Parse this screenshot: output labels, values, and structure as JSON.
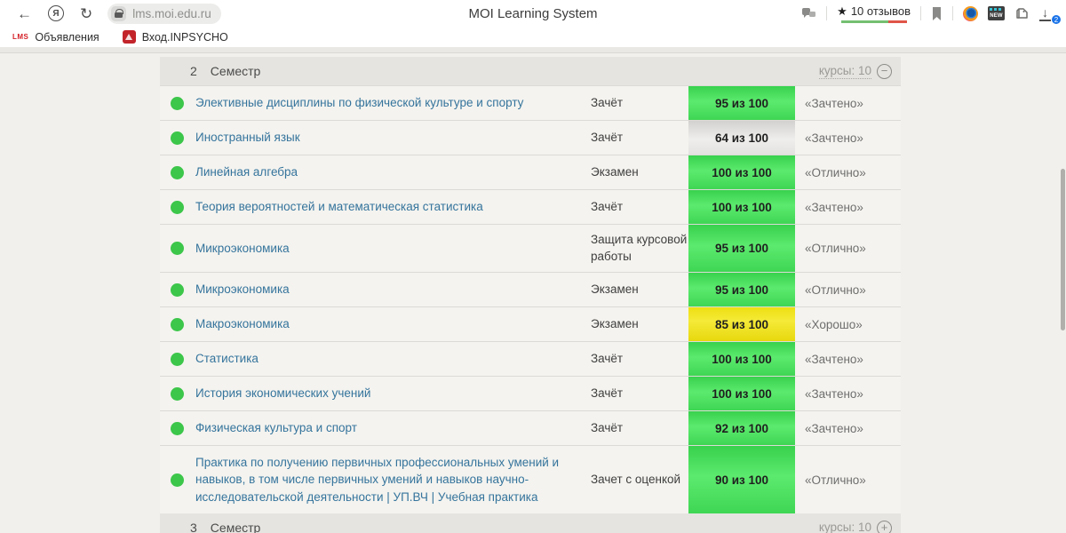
{
  "browser": {
    "back_icon": "←",
    "yandex_icon": "Я",
    "reload_icon": "↻",
    "lock_icon": "lock",
    "url": "lms.moi.edu.ru",
    "title": "MOI Learning System",
    "reviews": {
      "star_icon": "★",
      "label": "10 отзывов"
    },
    "extensions": {
      "new_label": "NEW",
      "download_icon": "↓",
      "download_count": "2"
    }
  },
  "bookmarks_bar": {
    "items": [
      {
        "favicon": "LMS",
        "label": "Объявления"
      },
      {
        "favicon": "crest",
        "label": "Вход.INPSYCHO"
      }
    ]
  },
  "table": {
    "header": {
      "number": "2",
      "label": "Семестр",
      "courses_link": "курсы: 10",
      "collapse_icon": "−"
    },
    "rows": [
      {
        "name": "Элективные дисциплины по физической культуре и спорту",
        "type": "Зачёт",
        "score": "95 из 100",
        "variant": "green",
        "grade": "«Зачтено»",
        "height": 39
      },
      {
        "name": "Иностранный язык",
        "type": "Зачёт",
        "score": "64 из 100",
        "variant": "gray",
        "grade": "«Зачтено»",
        "height": 39
      },
      {
        "name": "Линейная алгебра",
        "type": "Экзамен",
        "score": "100 из 100",
        "variant": "green",
        "grade": "«Отлично»",
        "height": 39
      },
      {
        "name": "Теория вероятностей и математическая статистика",
        "type": "Зачёт",
        "score": "100 из 100",
        "variant": "green",
        "grade": "«Зачтено»",
        "height": 39
      },
      {
        "name": "Микроэкономика",
        "type": "Защита курсовой работы",
        "score": "95 из 100",
        "variant": "green",
        "grade": "«Отлично»",
        "height": 54
      },
      {
        "name": "Микроэкономика",
        "type": "Экзамен",
        "score": "95 из 100",
        "variant": "green",
        "grade": "«Отлично»",
        "height": 39
      },
      {
        "name": "Макроэкономика",
        "type": "Экзамен",
        "score": "85 из 100",
        "variant": "yellow",
        "grade": "«Хорошо»",
        "height": 39
      },
      {
        "name": "Статистика",
        "type": "Зачёт",
        "score": "100 из 100",
        "variant": "green",
        "grade": "«Зачтено»",
        "height": 39
      },
      {
        "name": "История экономических учений",
        "type": "Зачёт",
        "score": "100 из 100",
        "variant": "green",
        "grade": "«Зачтено»",
        "height": 39
      },
      {
        "name": "Физическая культура и спорт",
        "type": "Зачёт",
        "score": "92 из 100",
        "variant": "green",
        "grade": "«Зачтено»",
        "height": 39
      },
      {
        "name": "Практика по получению первичных профессиональных умений и навыков, в том числе первичных умений и навыков научно-исследовательской деятельности | УП.ВЧ | Учебная практика",
        "type": "Зачет с оценкой",
        "score": "90 из 100",
        "variant": "green",
        "grade": "«Отлично»",
        "height": 77
      }
    ],
    "footer": {
      "number": "3",
      "label": "Семестр",
      "courses_link": "курсы: 10",
      "expand_icon": "+"
    }
  },
  "colors": {
    "page_background": "#f1f0ec",
    "band_background": "#e5e4e0",
    "link": "#35749c",
    "badge_green": "#4cdb5e",
    "badge_yellow": "#eee01a",
    "badge_gray": "#e0dfdd",
    "status_dot": "#3cc64a"
  }
}
